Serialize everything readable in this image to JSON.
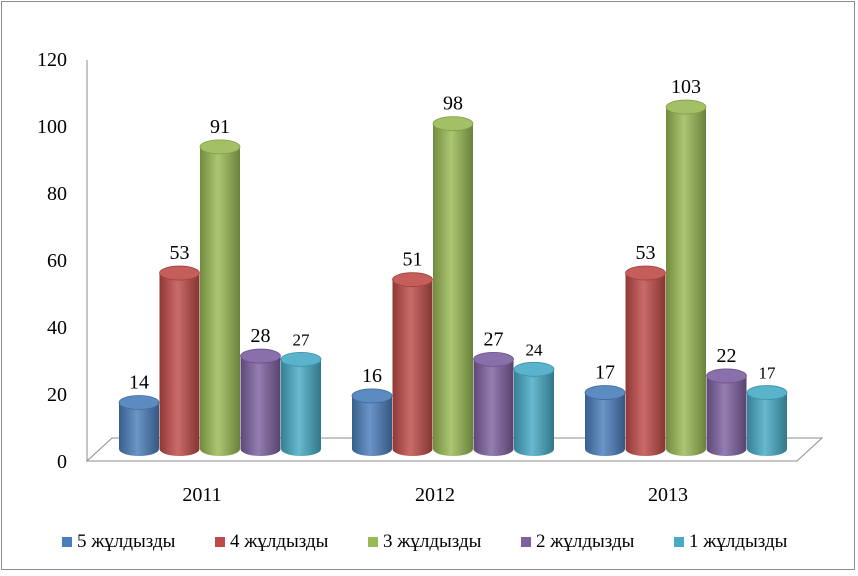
{
  "chart_data": {
    "type": "bar",
    "style": "3d-cylinder",
    "categories": [
      "2011",
      "2012",
      "2013"
    ],
    "series": [
      {
        "name": "5 жұлдызды",
        "color": "#4a7ebb",
        "values": [
          14,
          16,
          17
        ]
      },
      {
        "name": "4 жұлдызды",
        "color": "#be4b48",
        "values": [
          53,
          51,
          53
        ]
      },
      {
        "name": "3 жұлдызды",
        "color": "#98b954",
        "values": [
          91,
          98,
          103
        ]
      },
      {
        "name": "2 жұлдызды",
        "color": "#7d60a0",
        "values": [
          28,
          27,
          22
        ]
      },
      {
        "name": "1 жұлдызды",
        "color": "#46aac5",
        "values": [
          27,
          24,
          17
        ]
      }
    ],
    "yticks": [
      "0",
      "20",
      "40",
      "60",
      "80",
      "100",
      "120"
    ],
    "ylim": [
      0,
      120
    ],
    "grid": false,
    "legend": "bottom"
  }
}
